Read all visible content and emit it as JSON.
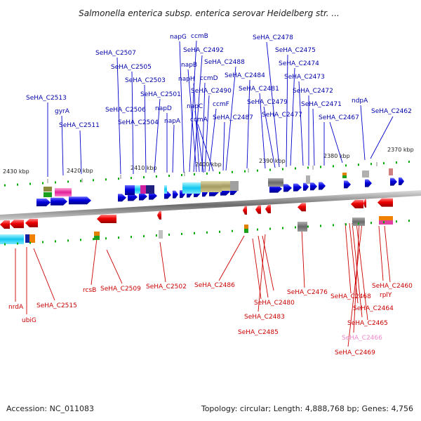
{
  "title": "Salmonella enterica subsp. enterica serovar Heidelberg str. ...",
  "footer": {
    "accession": "Accession: NC_011083",
    "summary": "Topology: circular; Length: 4,888,768 bp; Genes: 4,756"
  },
  "ticks": [
    "2430 kbp",
    "2420 kbp",
    "2410 kbp",
    "2400 kbp",
    "2390 kbp",
    "2380 kbp",
    "2370 kbp"
  ],
  "colors": {
    "forward": "#0000dd",
    "reverse": "#ee0000",
    "forward_label": "#0000aa",
    "reverse_label": "#cc0000",
    "highlight_label": "#ee88cc",
    "backbone": "#808080",
    "tick_mark": "#00aa00"
  },
  "forward_genes": [
    "napG",
    "ccmB",
    "SeHA_C2492",
    "SeHA_C2507",
    "SeHA_C2505",
    "napB",
    "ccmD",
    "SeHA_C2488",
    "SeHA_C2503",
    "napH",
    "SeHA_C2484",
    "SeHA_C2501",
    "SeHA_C2490",
    "napC",
    "ccmF",
    "SeHA_C2513",
    "SeHA_C2506",
    "napD",
    "ccmA",
    "SeHA_C2487",
    "gyrA",
    "SeHA_C2504",
    "napA",
    "SeHA_C2511",
    "SeHA_C2478",
    "SeHA_C2475",
    "SeHA_C2474",
    "SeHA_C2473",
    "SeHA_C2481",
    "SeHA_C2472",
    "SeHA_C2479",
    "SeHA_C2471",
    "ndpA",
    "SeHA_C2477",
    "SeHA_C2467",
    "SeHA_C2462"
  ],
  "reverse_genes": [
    "nrdA",
    "ubiG",
    "SeHA_C2515",
    "rcsB",
    "SeHA_C2509",
    "SeHA_C2502",
    "SeHA_C2486",
    "SeHA_C2476",
    "SeHA_C2480",
    "SeHA_C2483",
    "SeHA_C2485",
    "SeHA_C2468",
    "SeHA_C2460",
    "rplY",
    "SeHA_C2464",
    "SeHA_C2465",
    "SeHA_C2466",
    "SeHA_C2469"
  ]
}
